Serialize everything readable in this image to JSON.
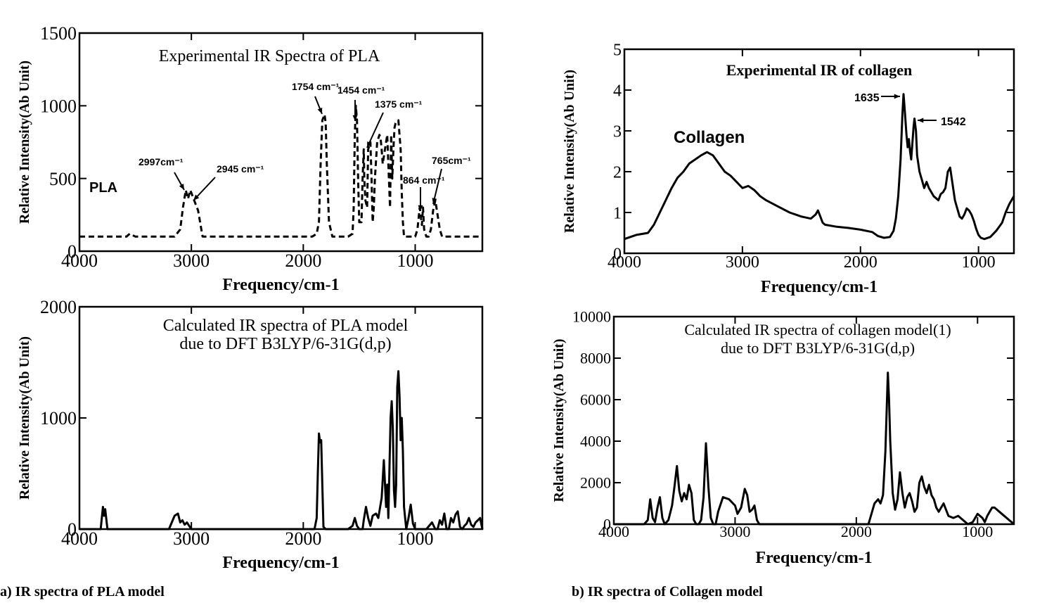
{
  "captions": [
    "a) IR spectra of PLA model",
    "b) IR spectra of Collagen model"
  ],
  "chart_data": [
    {
      "type": "line",
      "title": "Experimental IR Spectra of PLA",
      "xlabel": "Frequency/cm-1",
      "ylabel": "Relative Intensity(Ab Unit)",
      "xlim": [
        4000,
        400
      ],
      "ylim": [
        0,
        1500
      ],
      "xticks": [
        4000,
        3000,
        2000,
        1000
      ],
      "yticks": [
        0,
        500,
        1000,
        1500
      ],
      "line_style": "dashed",
      "series": [
        {
          "x": [
            4000,
            3800,
            3620,
            3580,
            3550,
            3500,
            3250,
            3150,
            3100,
            3075,
            3050,
            3030,
            3010,
            2990,
            2970,
            2940,
            2900,
            2000,
            1920,
            1880,
            1860,
            1845,
            1830,
            1810,
            1800,
            1790,
            1770,
            1740,
            1700,
            1600,
            1560,
            1550,
            1540,
            1530,
            1520,
            1510,
            1500,
            1480,
            1470,
            1460,
            1455,
            1445,
            1430,
            1420,
            1400,
            1390,
            1380,
            1370,
            1360,
            1340,
            1320,
            1310,
            1300,
            1290,
            1270,
            1250,
            1240,
            1225,
            1215,
            1205,
            1195,
            1185,
            1175,
            1150,
            1130,
            1120,
            1110,
            1100,
            1080,
            1060,
            1040,
            1000,
            980,
            960,
            940,
            930,
            920,
            900,
            880,
            860,
            840,
            820,
            800,
            780,
            760,
            740,
            700,
            600,
            400
          ],
          "y": [
            100,
            100,
            100,
            100,
            120,
            100,
            100,
            100,
            150,
            300,
            420,
            360,
            420,
            380,
            340,
            280,
            100,
            100,
            100,
            120,
            200,
            600,
            900,
            940,
            880,
            600,
            200,
            100,
            100,
            100,
            120,
            300,
            800,
            1000,
            900,
            500,
            200,
            200,
            500,
            700,
            500,
            350,
            300,
            700,
            750,
            500,
            200,
            300,
            500,
            750,
            800,
            780,
            700,
            600,
            700,
            800,
            600,
            300,
            800,
            500,
            700,
            850,
            880,
            900,
            700,
            400,
            200,
            100,
            100,
            100,
            100,
            100,
            150,
            300,
            180,
            300,
            150,
            100,
            100,
            150,
            280,
            350,
            250,
            150,
            100,
            100,
            100,
            100,
            100
          ]
        }
      ],
      "annotations": [
        "2997cm⁻¹",
        "2945 cm⁻¹",
        "1754 cm⁻¹",
        "1454 cm⁻¹",
        "1375 cm⁻¹",
        "864 cm⁻¹",
        "765cm⁻¹",
        "PLA"
      ]
    },
    {
      "type": "line",
      "title": "Experimental IR of collagen",
      "xlabel": "Frequency/cm-1",
      "ylabel": "Relative Intensity(Ab Unit)",
      "xlim": [
        4000,
        700
      ],
      "ylim": [
        0,
        5
      ],
      "xticks": [
        4000,
        3000,
        2000,
        1000
      ],
      "yticks": [
        0,
        1,
        2,
        3,
        4,
        5
      ],
      "series": [
        {
          "x": [
            4000,
            3950,
            3900,
            3800,
            3750,
            3700,
            3650,
            3600,
            3550,
            3500,
            3450,
            3400,
            3350,
            3300,
            3250,
            3200,
            3150,
            3100,
            3050,
            3000,
            2950,
            2900,
            2850,
            2800,
            2700,
            2600,
            2500,
            2420,
            2380,
            2360,
            2340,
            2320,
            2300,
            2200,
            2100,
            2000,
            1900,
            1850,
            1800,
            1750,
            1720,
            1700,
            1680,
            1660,
            1645,
            1635,
            1630,
            1620,
            1610,
            1600,
            1590,
            1580,
            1570,
            1560,
            1550,
            1542,
            1530,
            1520,
            1510,
            1500,
            1480,
            1460,
            1440,
            1420,
            1400,
            1380,
            1360,
            1340,
            1320,
            1300,
            1280,
            1260,
            1240,
            1230,
            1220,
            1200,
            1180,
            1160,
            1140,
            1120,
            1100,
            1080,
            1060,
            1040,
            1020,
            1000,
            980,
            950,
            900,
            850,
            800,
            770,
            740,
            720,
            700
          ],
          "y": [
            0.35,
            0.4,
            0.45,
            0.5,
            0.7,
            1.0,
            1.3,
            1.6,
            1.85,
            2.0,
            2.2,
            2.3,
            2.4,
            2.48,
            2.4,
            2.2,
            2.0,
            1.9,
            1.75,
            1.6,
            1.65,
            1.55,
            1.4,
            1.3,
            1.15,
            1.0,
            0.9,
            0.85,
            0.95,
            1.05,
            0.9,
            0.75,
            0.7,
            0.65,
            0.62,
            0.58,
            0.52,
            0.42,
            0.38,
            0.4,
            0.55,
            0.85,
            1.4,
            2.3,
            3.4,
            3.9,
            3.7,
            3.3,
            2.9,
            2.6,
            2.8,
            2.5,
            2.3,
            2.7,
            3.1,
            3.3,
            3.0,
            2.4,
            2.2,
            2.0,
            1.8,
            1.6,
            1.75,
            1.6,
            1.5,
            1.4,
            1.35,
            1.3,
            1.45,
            1.5,
            1.6,
            2.0,
            2.1,
            1.9,
            1.7,
            1.3,
            1.1,
            0.9,
            0.85,
            0.95,
            1.1,
            1.05,
            0.95,
            0.8,
            0.6,
            0.45,
            0.38,
            0.35,
            0.4,
            0.55,
            0.75,
            1.0,
            1.2,
            1.3,
            1.4
          ]
        }
      ],
      "annotations": [
        "1635",
        "1542",
        "Collagen"
      ]
    },
    {
      "type": "line",
      "title": "Calculated IR spectra of PLA model\ndue to DFT B3LYP/6-31G(d,p)",
      "xlabel": "Frequency/cm-1",
      "ylabel": "Relative Intensity(Ab Unit)",
      "xlim": [
        4000,
        400
      ],
      "ylim": [
        0,
        2000
      ],
      "xticks": [
        4000,
        3000,
        2000,
        1000
      ],
      "yticks": [
        0,
        1000,
        2000
      ],
      "series": [
        {
          "x": [
            4000,
            3810,
            3790,
            3780,
            3770,
            3750,
            3730,
            3200,
            3150,
            3120,
            3100,
            3080,
            3060,
            3040,
            3000,
            2000,
            1900,
            1880,
            1870,
            1860,
            1850,
            1840,
            1830,
            1820,
            1800,
            1600,
            1560,
            1540,
            1520,
            1500,
            1470,
            1460,
            1440,
            1420,
            1400,
            1380,
            1350,
            1330,
            1300,
            1280,
            1260,
            1250,
            1240,
            1220,
            1210,
            1200,
            1190,
            1180,
            1170,
            1160,
            1150,
            1140,
            1130,
            1120,
            1110,
            1100,
            1080,
            1060,
            1040,
            1020,
            1000,
            980,
            900,
            850,
            820,
            800,
            780,
            760,
            740,
            720,
            700,
            680,
            660,
            640,
            620,
            600,
            580,
            560,
            540,
            520,
            500,
            480,
            460,
            440,
            420,
            400
          ],
          "y": [
            0,
            0,
            200,
            120,
            180,
            0,
            0,
            0,
            120,
            140,
            60,
            80,
            40,
            60,
            0,
            0,
            0,
            100,
            500,
            860,
            780,
            800,
            400,
            20,
            0,
            0,
            30,
            100,
            30,
            0,
            0,
            80,
            200,
            100,
            30,
            120,
            140,
            100,
            280,
            620,
            200,
            400,
            100,
            1000,
            1150,
            900,
            350,
            200,
            400,
            1280,
            1420,
            1200,
            800,
            1000,
            700,
            200,
            0,
            100,
            220,
            50,
            0,
            0,
            0,
            60,
            0,
            0,
            80,
            40,
            140,
            0,
            0,
            100,
            60,
            130,
            160,
            20,
            0,
            30,
            50,
            100,
            40,
            20,
            60,
            80,
            100,
            0
          ]
        }
      ]
    },
    {
      "type": "line",
      "title": "Calculated IR spectra of collagen model(1)\ndue to DFT B3LYP/6-31G(d,p)",
      "xlabel": "Frequency/cm-1",
      "ylabel": "Relative Intensity(Ab Unit)",
      "xlim": [
        4000,
        700
      ],
      "ylim": [
        0,
        10000
      ],
      "xticks": [
        4000,
        3000,
        2000,
        1000
      ],
      "yticks": [
        0,
        2000,
        4000,
        6000,
        8000,
        10000
      ],
      "series": [
        {
          "x": [
            4000,
            3800,
            3750,
            3720,
            3700,
            3680,
            3660,
            3640,
            3620,
            3600,
            3580,
            3550,
            3520,
            3500,
            3480,
            3460,
            3440,
            3420,
            3400,
            3380,
            3360,
            3340,
            3320,
            3300,
            3280,
            3260,
            3240,
            3220,
            3200,
            3180,
            3160,
            3140,
            3100,
            3050,
            3000,
            2980,
            2950,
            2920,
            2900,
            2880,
            2860,
            2840,
            2820,
            2800,
            2780,
            2750,
            1900,
            1850,
            1820,
            1800,
            1780,
            1760,
            1740,
            1730,
            1720,
            1700,
            1680,
            1660,
            1640,
            1620,
            1600,
            1580,
            1560,
            1540,
            1520,
            1500,
            1480,
            1460,
            1440,
            1420,
            1400,
            1380,
            1360,
            1340,
            1320,
            1300,
            1280,
            1260,
            1240,
            1200,
            1160,
            1120,
            1080,
            1040,
            1000,
            960,
            940,
            920,
            900,
            880,
            860,
            840,
            820,
            800,
            780,
            760,
            740,
            720,
            700
          ],
          "y": [
            0,
            0,
            0,
            200,
            1200,
            300,
            100,
            800,
            1300,
            300,
            0,
            200,
            900,
            1800,
            2800,
            1600,
            1100,
            1500,
            1200,
            1900,
            1500,
            200,
            0,
            0,
            200,
            1300,
            3900,
            1800,
            300,
            0,
            0,
            600,
            1300,
            1200,
            900,
            500,
            800,
            1700,
            1400,
            600,
            700,
            900,
            200,
            0,
            0,
            0,
            0,
            1000,
            1200,
            1000,
            1400,
            3500,
            7300,
            6000,
            4000,
            1500,
            700,
            1200,
            2500,
            1500,
            800,
            1300,
            1500,
            1100,
            600,
            800,
            2000,
            2300,
            1800,
            1500,
            1900,
            1400,
            1200,
            800,
            600,
            800,
            1000,
            700,
            400,
            300,
            400,
            200,
            0,
            100,
            500,
            300,
            100,
            400,
            600,
            800,
            800,
            700,
            600,
            500,
            400,
            300,
            200,
            100,
            0
          ]
        }
      ]
    }
  ]
}
